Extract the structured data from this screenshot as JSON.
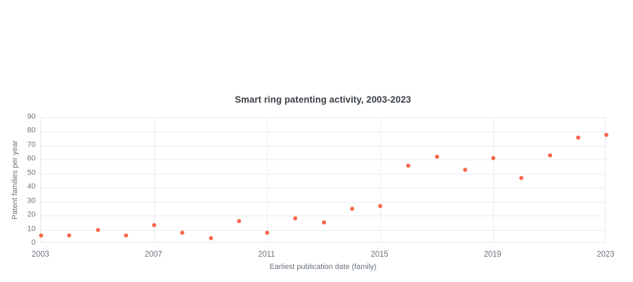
{
  "page": {
    "background": "#ffffff"
  },
  "chart_data": {
    "type": "scatter",
    "title": "Smart ring patenting activity, 2003-2023",
    "xlabel": "Earliest publication date (family)",
    "ylabel": "Patent families per year",
    "x": [
      2003,
      2004,
      2005,
      2006,
      2007,
      2008,
      2009,
      2010,
      2011,
      2012,
      2013,
      2014,
      2015,
      2016,
      2017,
      2018,
      2019,
      2020,
      2021,
      2022,
      2023
    ],
    "y": [
      6,
      6,
      10,
      6,
      13,
      8,
      4,
      16,
      8,
      18,
      15,
      25,
      27,
      56,
      62,
      53,
      61,
      47,
      63,
      76,
      78
    ],
    "xticks": [
      "2003",
      "2007",
      "2011",
      "2015",
      "2019",
      "2023"
    ],
    "xtick_values": [
      2003,
      2007,
      2011,
      2015,
      2019,
      2023
    ],
    "yticks": [
      "0",
      "10",
      "20",
      "30",
      "40",
      "50",
      "60",
      "70",
      "80",
      "90"
    ],
    "ytick_values": [
      0,
      10,
      20,
      30,
      40,
      50,
      60,
      70,
      80,
      90
    ],
    "xlim": [
      2003,
      2023
    ],
    "ylim": [
      0,
      90
    ],
    "grid": true,
    "legend": false,
    "colors": {
      "marker": "#f8674a",
      "grid": "#e9edf2",
      "axis_border": "#e4e8ee",
      "tick_text": "#6a737d",
      "title_text": "#3b4046"
    }
  }
}
